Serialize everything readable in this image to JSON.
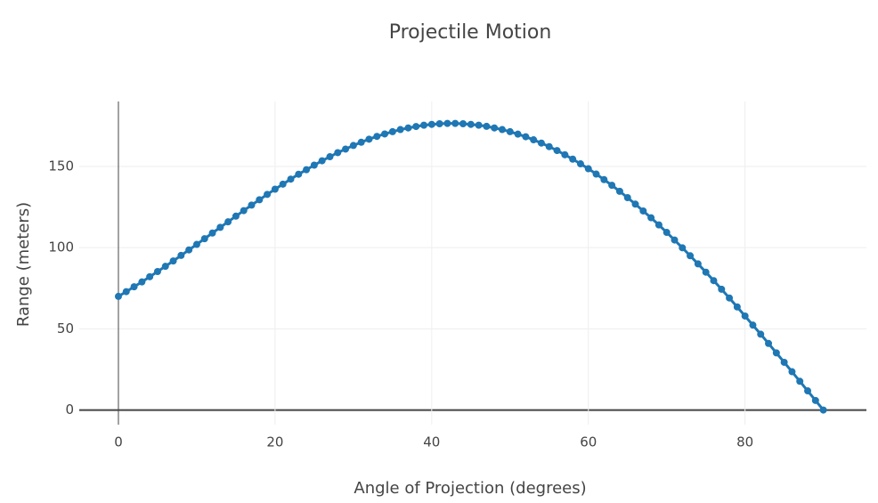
{
  "chart_data": {
    "type": "line",
    "title": "Projectile Motion",
    "x_label": "Angle of Projection (degrees)",
    "y_label": "Range (meters)",
    "x": [
      0,
      1,
      2,
      3,
      4,
      5,
      6,
      7,
      8,
      9,
      10,
      11,
      12,
      13,
      14,
      15,
      16,
      17,
      18,
      19,
      20,
      21,
      22,
      23,
      24,
      25,
      26,
      27,
      28,
      29,
      30,
      31,
      32,
      33,
      34,
      35,
      36,
      37,
      38,
      39,
      40,
      41,
      42,
      43,
      44,
      45,
      46,
      47,
      48,
      49,
      50,
      51,
      52,
      53,
      54,
      55,
      56,
      57,
      58,
      59,
      60,
      61,
      62,
      63,
      64,
      65,
      66,
      67,
      68,
      69,
      70,
      71,
      72,
      73,
      74,
      75,
      76,
      77,
      78,
      79,
      80,
      81,
      82,
      83,
      84,
      85,
      86,
      87,
      88,
      89,
      90
    ],
    "series": [
      {
        "name": "Range",
        "color": "#1f77b4",
        "values": [
          70.0,
          72.9,
          75.9,
          78.9,
          82.1,
          85.3,
          88.5,
          91.8,
          95.2,
          98.6,
          102.0,
          105.5,
          109.0,
          112.5,
          115.9,
          119.4,
          122.8,
          126.2,
          129.5,
          132.8,
          136.0,
          139.1,
          142.2,
          145.2,
          148.0,
          150.8,
          153.5,
          156.0,
          158.5,
          160.7,
          162.9,
          164.9,
          166.8,
          168.5,
          170.0,
          171.4,
          172.7,
          173.7,
          174.6,
          175.4,
          175.9,
          176.3,
          176.5,
          176.5,
          176.3,
          175.9,
          175.4,
          174.7,
          173.7,
          172.7,
          171.4,
          169.9,
          168.3,
          166.4,
          164.4,
          162.2,
          159.8,
          157.2,
          154.5,
          151.6,
          148.6,
          145.3,
          141.9,
          138.4,
          134.7,
          130.8,
          126.8,
          122.6,
          118.4,
          114.0,
          109.4,
          104.7,
          99.9,
          95.0,
          90.0,
          84.9,
          79.7,
          74.4,
          69.0,
          63.5,
          57.9,
          52.3,
          46.7,
          41.0,
          35.2,
          29.4,
          23.6,
          17.7,
          11.8,
          5.9,
          0
        ]
      }
    ],
    "xlim": [
      -5,
      95.5
    ],
    "xticks": [
      0,
      20,
      40,
      60,
      80
    ],
    "ylim": [
      -9,
      190
    ],
    "yticks": [
      0,
      50,
      100,
      150
    ],
    "grid": true
  }
}
